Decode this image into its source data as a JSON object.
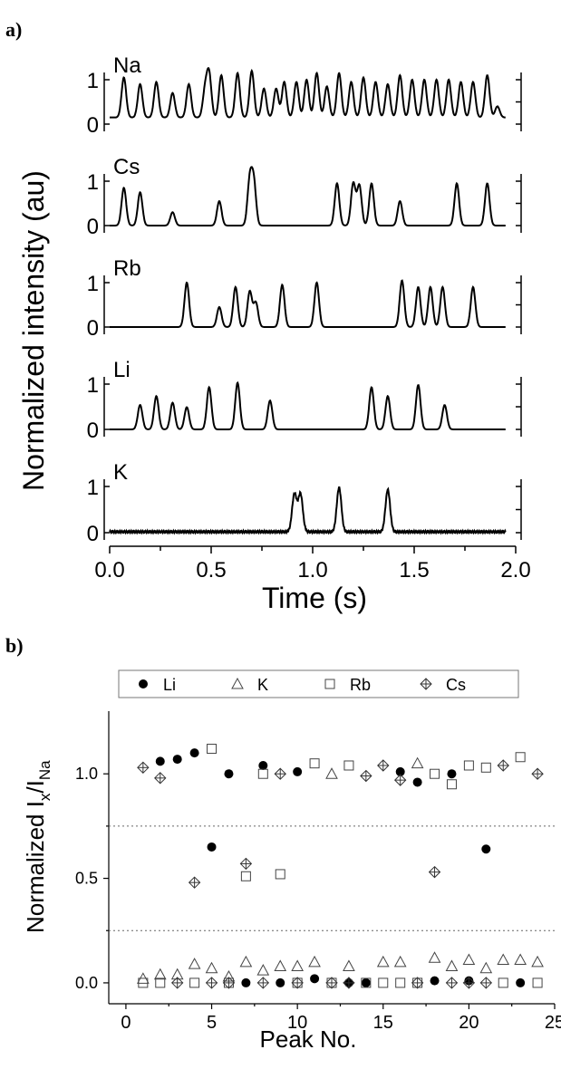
{
  "figure": {
    "panel_a_label": "a)",
    "panel_b_label": "b)"
  },
  "chart_data": [
    {
      "type": "line",
      "panel": "a)",
      "xlabel": "Time (s)",
      "ylabel": "Normalized intensity (au)",
      "xlim": [
        0.0,
        2.0
      ],
      "xticks": [
        "0.0",
        "0.5",
        "1.0",
        "1.5",
        "2.0"
      ],
      "ylim": [
        0,
        1.15
      ],
      "yticks": [
        "0",
        "1"
      ],
      "traces": [
        {
          "name": "Na",
          "peaks": [
            [
              0.07,
              0.9
            ],
            [
              0.15,
              0.75
            ],
            [
              0.23,
              0.8
            ],
            [
              0.31,
              0.55
            ],
            [
              0.39,
              0.75
            ],
            [
              0.47,
              0.6
            ],
            [
              0.49,
              0.95
            ],
            [
              0.55,
              0.95
            ],
            [
              0.63,
              1.0
            ],
            [
              0.7,
              1.05
            ],
            [
              0.76,
              0.65
            ],
            [
              0.82,
              0.65
            ],
            [
              0.86,
              0.8
            ],
            [
              0.92,
              0.8
            ],
            [
              0.97,
              0.85
            ],
            [
              1.02,
              1.0
            ],
            [
              1.07,
              0.7
            ],
            [
              1.13,
              1.0
            ],
            [
              1.19,
              0.8
            ],
            [
              1.25,
              0.9
            ],
            [
              1.31,
              0.8
            ],
            [
              1.37,
              0.75
            ],
            [
              1.43,
              0.95
            ],
            [
              1.49,
              0.85
            ],
            [
              1.55,
              0.85
            ],
            [
              1.61,
              0.85
            ],
            [
              1.67,
              0.85
            ],
            [
              1.73,
              0.8
            ],
            [
              1.79,
              0.8
            ],
            [
              1.86,
              0.95
            ],
            [
              1.91,
              0.25
            ]
          ],
          "baseline": 0.15,
          "end": 1.95
        },
        {
          "name": "Cs",
          "peaks": [
            [
              0.07,
              0.85
            ],
            [
              0.15,
              0.75
            ],
            [
              0.31,
              0.3
            ],
            [
              0.54,
              0.55
            ],
            [
              0.69,
              1.0
            ],
            [
              0.71,
              0.95
            ],
            [
              1.12,
              0.95
            ],
            [
              1.2,
              0.95
            ],
            [
              1.23,
              0.9
            ],
            [
              1.29,
              0.95
            ],
            [
              1.43,
              0.55
            ],
            [
              1.71,
              0.95
            ],
            [
              1.86,
              0.95
            ]
          ],
          "baseline": 0.0,
          "end": 1.95
        },
        {
          "name": "Rb",
          "peaks": [
            [
              0.38,
              1.0
            ],
            [
              0.54,
              0.45
            ],
            [
              0.62,
              0.9
            ],
            [
              0.69,
              0.8
            ],
            [
              0.72,
              0.55
            ],
            [
              0.85,
              0.95
            ],
            [
              1.02,
              1.0
            ],
            [
              1.44,
              1.05
            ],
            [
              1.52,
              0.9
            ],
            [
              1.58,
              0.9
            ],
            [
              1.64,
              0.9
            ],
            [
              1.79,
              0.9
            ]
          ],
          "baseline": 0.0,
          "end": 1.95
        },
        {
          "name": "Li",
          "peaks": [
            [
              0.15,
              0.55
            ],
            [
              0.23,
              0.75
            ],
            [
              0.31,
              0.6
            ],
            [
              0.38,
              0.5
            ],
            [
              0.49,
              0.95
            ],
            [
              0.63,
              1.05
            ],
            [
              0.79,
              0.65
            ],
            [
              1.29,
              0.95
            ],
            [
              1.37,
              0.75
            ],
            [
              1.52,
              1.0
            ],
            [
              1.65,
              0.55
            ]
          ],
          "baseline": 0.0,
          "end": 1.95
        },
        {
          "name": "K",
          "peaks": [
            [
              0.91,
              0.85
            ],
            [
              0.94,
              0.85
            ],
            [
              1.13,
              1.0
            ],
            [
              1.37,
              0.95
            ]
          ],
          "baseline": 0.02,
          "end": 1.95
        }
      ]
    },
    {
      "type": "scatter",
      "panel": "b)",
      "xlabel": "Peak No.",
      "ylabel": "Normalized Iₓ/Iₙₐ",
      "ylabel_parts": {
        "main": "Normalized I",
        "sub1": "x",
        "slash": "/I",
        "sub2": "Na"
      },
      "xlim": [
        -1,
        25
      ],
      "ylim": [
        -0.1,
        1.3
      ],
      "xticks": [
        "0",
        "5",
        "10",
        "15",
        "20",
        "25"
      ],
      "yticks": [
        "0.0",
        "0.5",
        "1.0"
      ],
      "hlines": [
        0.25,
        0.75
      ],
      "legend_position": "top",
      "series": [
        {
          "name": "Li",
          "marker": "filled-circle",
          "points": [
            [
              2,
              1.06
            ],
            [
              3,
              1.07
            ],
            [
              4,
              1.1
            ],
            [
              5,
              0.65
            ],
            [
              6,
              1.0
            ],
            [
              8,
              1.04
            ],
            [
              10,
              1.01
            ],
            [
              16,
              1.01
            ],
            [
              17,
              0.96
            ],
            [
              19,
              1.0
            ],
            [
              21,
              0.64
            ],
            [
              7,
              0.0
            ],
            [
              9,
              0.0
            ],
            [
              11,
              0.02
            ],
            [
              14,
              0.0
            ],
            [
              18,
              0.01
            ],
            [
              20,
              0.01
            ],
            [
              13,
              0.0
            ],
            [
              23,
              0.0
            ]
          ]
        },
        {
          "name": "K",
          "marker": "triangle",
          "points": [
            [
              1,
              0.02
            ],
            [
              2,
              0.04
            ],
            [
              3,
              0.04
            ],
            [
              4,
              0.09
            ],
            [
              5,
              0.07
            ],
            [
              6,
              0.03
            ],
            [
              7,
              0.1
            ],
            [
              8,
              0.06
            ],
            [
              9,
              0.08
            ],
            [
              10,
              0.08
            ],
            [
              11,
              0.1
            ],
            [
              12,
              1.0
            ],
            [
              13,
              0.08
            ],
            [
              15,
              0.1
            ],
            [
              16,
              0.1
            ],
            [
              17,
              1.05
            ],
            [
              18,
              0.12
            ],
            [
              19,
              0.08
            ],
            [
              20,
              0.11
            ],
            [
              21,
              0.07
            ],
            [
              22,
              0.11
            ],
            [
              23,
              0.11
            ],
            [
              24,
              0.1
            ]
          ]
        },
        {
          "name": "Rb",
          "marker": "open-square",
          "points": [
            [
              5,
              1.12
            ],
            [
              7,
              0.51
            ],
            [
              8,
              1.0
            ],
            [
              9,
              0.52
            ],
            [
              11,
              1.05
            ],
            [
              13,
              1.04
            ],
            [
              18,
              1.0
            ],
            [
              19,
              0.95
            ],
            [
              20,
              1.04
            ],
            [
              21,
              1.03
            ],
            [
              23,
              1.08
            ],
            [
              1,
              0.0
            ],
            [
              2,
              0.0
            ],
            [
              4,
              0.0
            ],
            [
              6,
              0.0
            ],
            [
              10,
              0.0
            ],
            [
              12,
              0.0
            ],
            [
              14,
              0.0
            ],
            [
              15,
              0.0
            ],
            [
              16,
              0.0
            ],
            [
              17,
              0.0
            ],
            [
              22,
              0.0
            ],
            [
              24,
              0.0
            ]
          ]
        },
        {
          "name": "Cs",
          "marker": "crossed-diamond",
          "points": [
            [
              1,
              1.03
            ],
            [
              2,
              0.98
            ],
            [
              4,
              0.48
            ],
            [
              7,
              0.57
            ],
            [
              9,
              1.0
            ],
            [
              14,
              0.99
            ],
            [
              15,
              1.04
            ],
            [
              16,
              0.97
            ],
            [
              18,
              0.53
            ],
            [
              22,
              1.04
            ],
            [
              24,
              1.0
            ],
            [
              3,
              0.0
            ],
            [
              5,
              0.0
            ],
            [
              6,
              0.0
            ],
            [
              8,
              0.0
            ],
            [
              10,
              0.0
            ],
            [
              12,
              0.0
            ],
            [
              13,
              0.0
            ],
            [
              17,
              0.0
            ],
            [
              19,
              0.0
            ],
            [
              20,
              0.0
            ],
            [
              21,
              0.0
            ]
          ]
        }
      ]
    }
  ]
}
